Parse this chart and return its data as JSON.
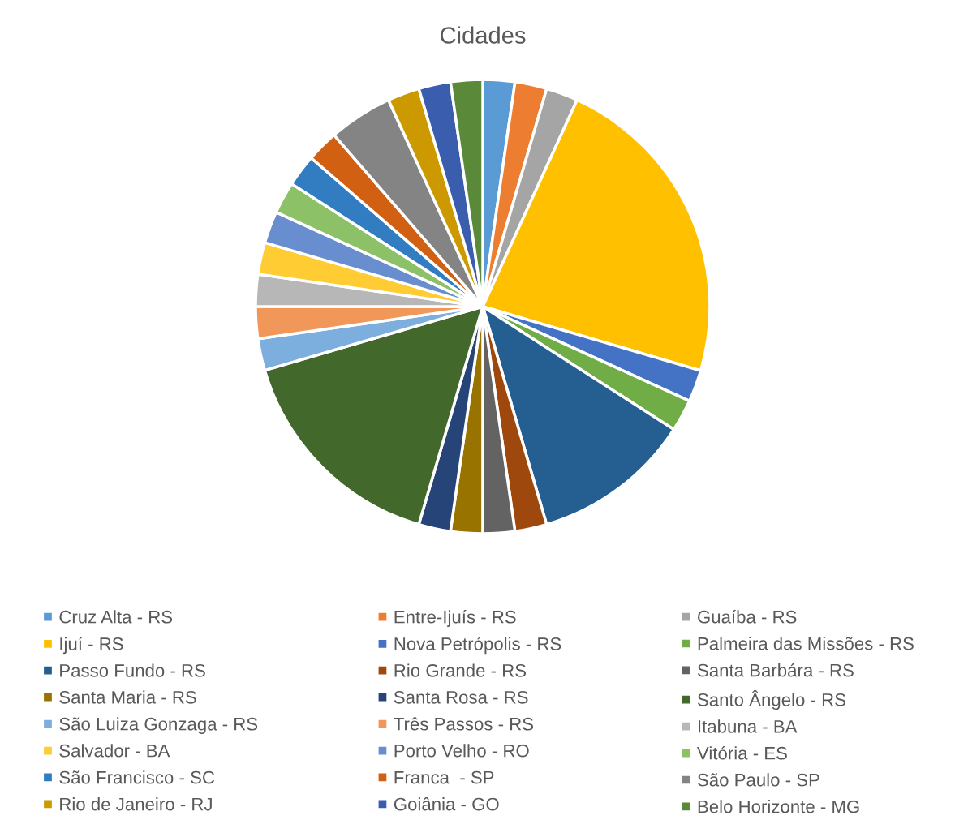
{
  "chart_data": {
    "type": "pie",
    "title": "Cidades",
    "legend": "bottom",
    "categories": [
      "Cruz Alta - RS",
      "Entre-Ijuís - RS",
      "Guaíba - RS",
      "Ijuí - RS",
      "Nova Petrópolis - RS",
      "Palmeira das Missões - RS",
      "Passo Fundo - RS",
      "Rio Grande - RS",
      "Santa Barbára - RS",
      "Santa Maria - RS",
      "Santa Rosa - RS",
      "Santo Ângelo - RS",
      "São Luiza Gonzaga - RS",
      "Três Passos - RS",
      "Itabuna - BA",
      "Salvador - BA",
      "Porto Velho - RO",
      "Vitória - ES",
      "São Francisco - SC",
      "Franca  - SP",
      "São Paulo - SP",
      "Rio de Janeiro - RJ",
      "Goiânia - GO",
      "Belo Horizonte - MG"
    ],
    "values": [
      2.27,
      2.27,
      2.27,
      22.73,
      2.27,
      2.27,
      11.36,
      2.27,
      2.27,
      2.27,
      2.27,
      15.91,
      2.27,
      2.27,
      2.27,
      2.27,
      2.27,
      2.27,
      2.27,
      2.27,
      4.55,
      2.27,
      2.27,
      2.27
    ],
    "colors": [
      "#5b9bd5",
      "#ed7d31",
      "#a5a5a5",
      "#ffc000",
      "#4472c4",
      "#70ad47",
      "#255e91",
      "#9e480e",
      "#636363",
      "#997300",
      "#264478",
      "#43682b",
      "#7cafdd",
      "#f1975a",
      "#b7b7b7",
      "#ffcd33",
      "#698ed0",
      "#8cc168",
      "#327dc2",
      "#d26012",
      "#848484",
      "#cc9a00",
      "#3a5dae",
      "#5a8a39"
    ]
  }
}
